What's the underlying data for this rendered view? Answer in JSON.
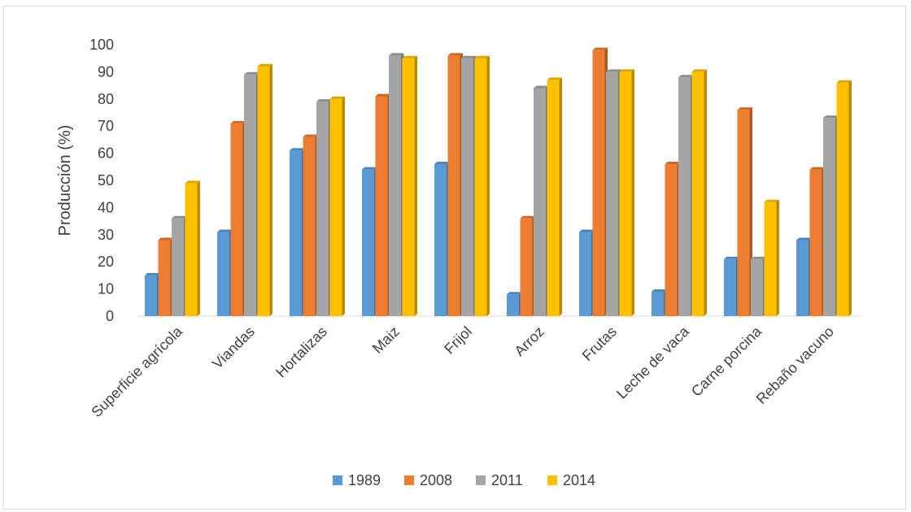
{
  "chart_data": {
    "type": "bar",
    "title": "",
    "xlabel": "",
    "ylabel": "Producción (%)",
    "ylim": [
      0,
      100
    ],
    "yticks": [
      0,
      10,
      20,
      30,
      40,
      50,
      60,
      70,
      80,
      90,
      100
    ],
    "grid": false,
    "legend_position": "bottom",
    "categories": [
      "Superficie agrícola",
      "Viandas",
      "Hortalizas",
      "Maiz",
      "Frijol",
      "Arroz",
      "Frutas",
      "Leche de vaca",
      "Carne porcina",
      "Rebaño vacuno"
    ],
    "series": [
      {
        "name": "1989",
        "color": "#5b9bd5",
        "values": [
          15,
          31,
          61,
          54,
          56,
          8,
          31,
          9,
          21,
          28
        ]
      },
      {
        "name": "2008",
        "color": "#ed7d31",
        "values": [
          28,
          71,
          66,
          81,
          96,
          36,
          98,
          56,
          76,
          54
        ]
      },
      {
        "name": "2011",
        "color": "#a5a5a5",
        "values": [
          36,
          89,
          79,
          96,
          95,
          84,
          90,
          88,
          21,
          73
        ]
      },
      {
        "name": "2014",
        "color": "#ffc000",
        "values": [
          49,
          92,
          80,
          95,
          95,
          87,
          90,
          90,
          42,
          86
        ]
      }
    ]
  }
}
